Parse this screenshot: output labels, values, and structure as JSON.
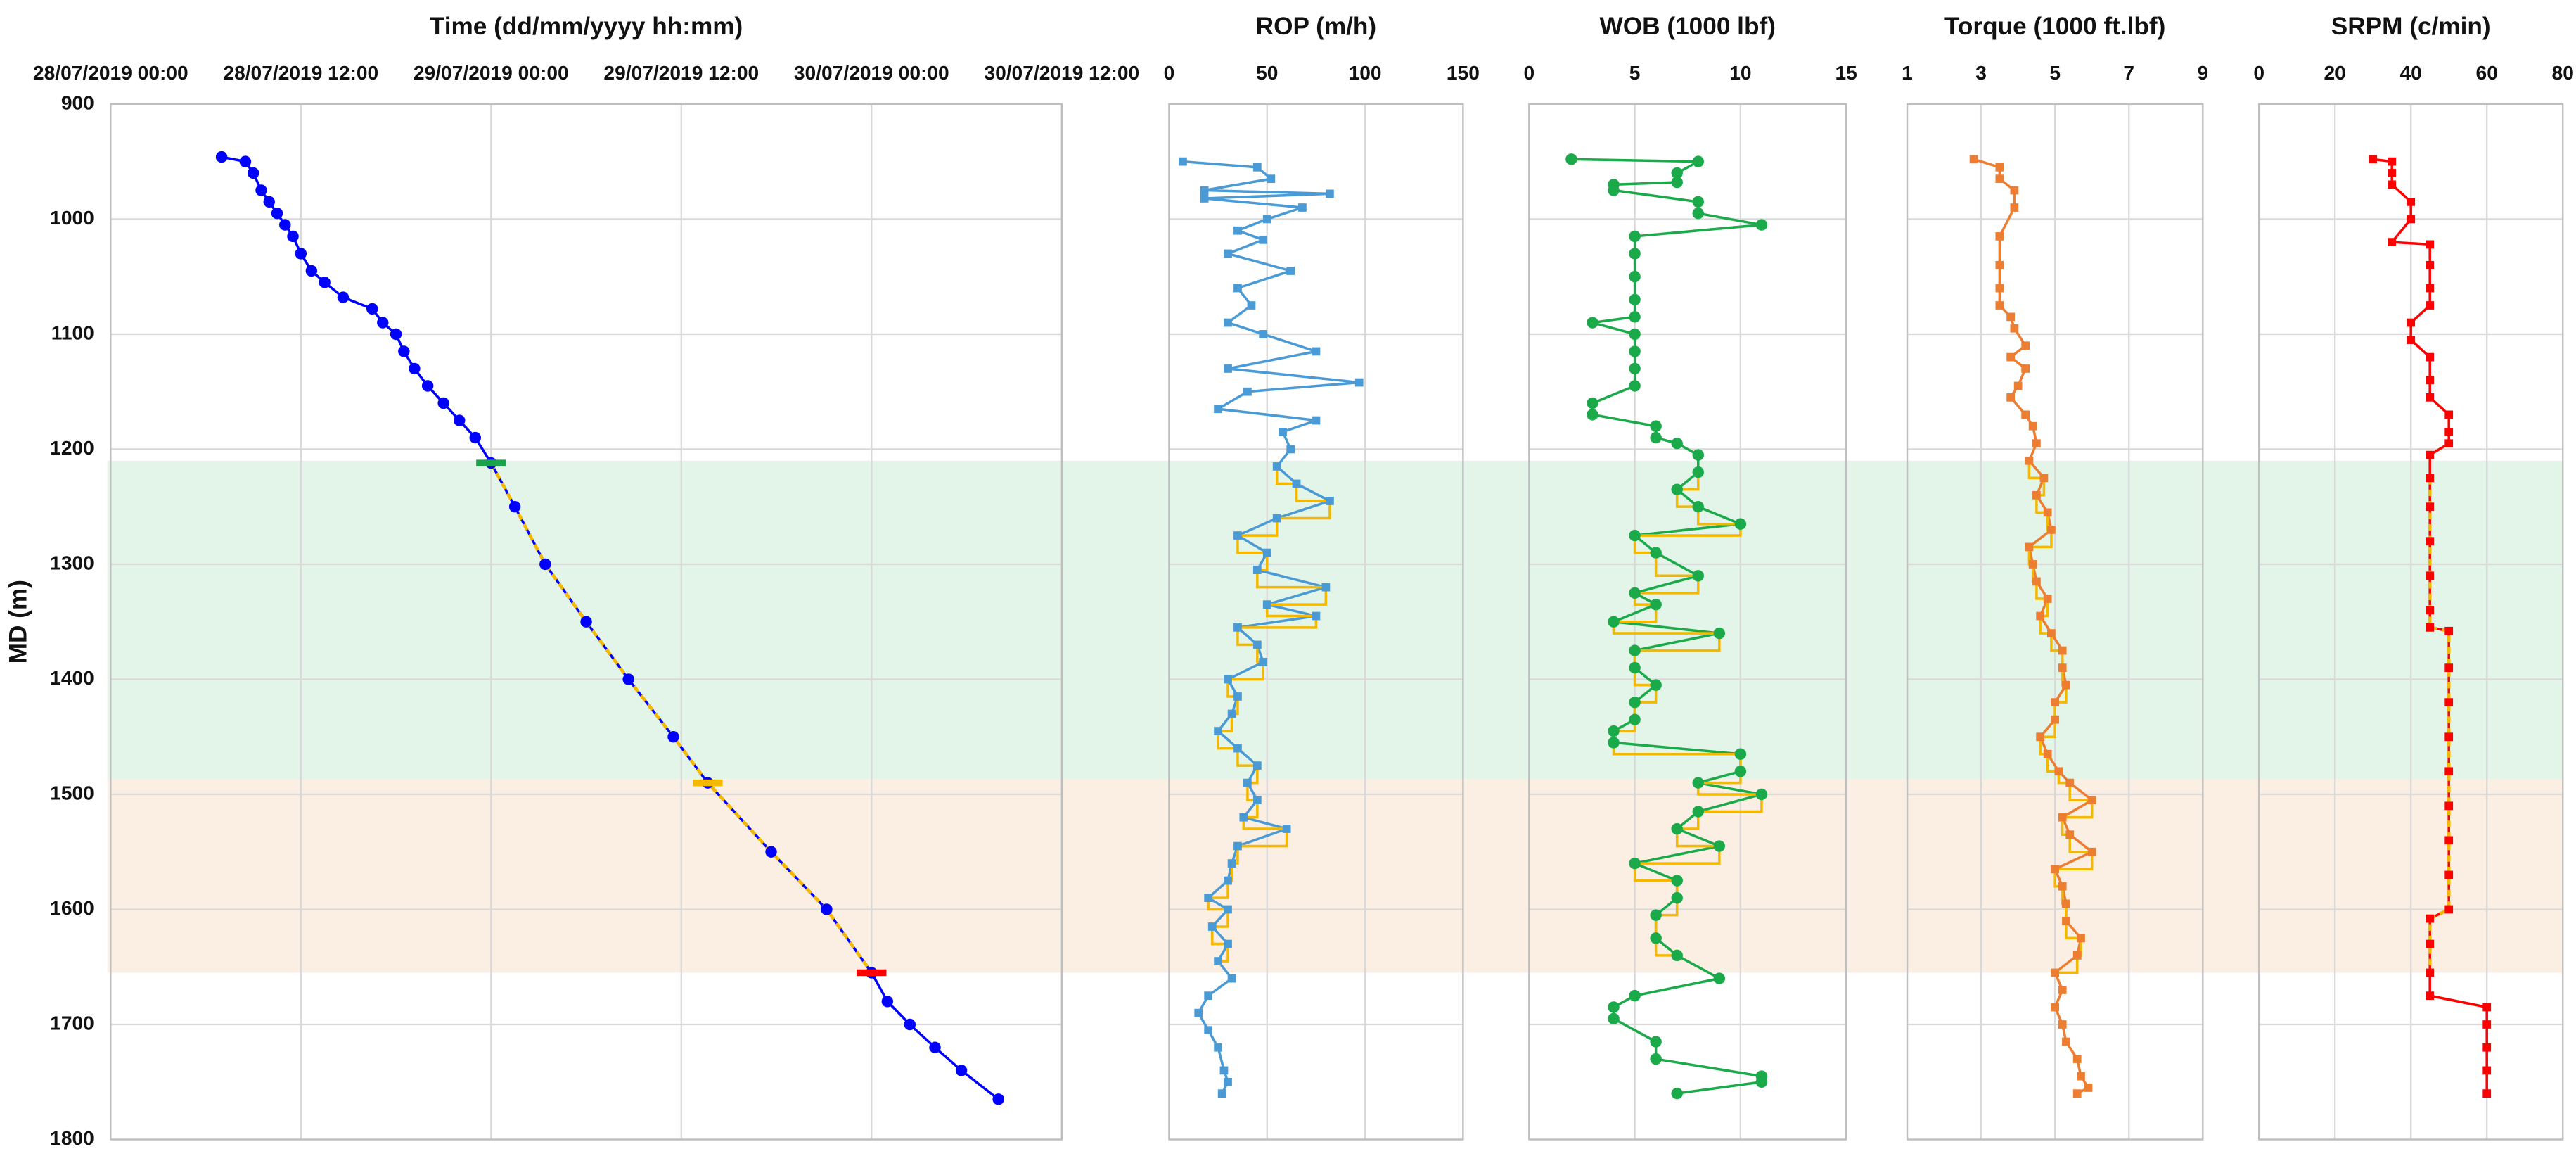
{
  "bands": [
    {
      "from": 1210,
      "to": 1487,
      "color": "#e3f4e8"
    },
    {
      "from": 1487,
      "to": 1655,
      "color": "#fbefe4"
    }
  ],
  "chart_data": [
    {
      "type": "line",
      "title": "Time (dd/mm/yyyy hh:mm)",
      "ylabel": "MD (m)",
      "ylim": [
        900,
        1800
      ],
      "yticks": [
        900,
        1000,
        1100,
        1200,
        1300,
        1400,
        1500,
        1600,
        1700,
        1800
      ],
      "y_inverted": true,
      "grid": true,
      "xlim": [
        "2019-07-28T00:00",
        "2019-07-30T12:00"
      ],
      "xticks": [
        {
          "value": "2019-07-28T00:00",
          "label": "28/07/2019 00:00"
        },
        {
          "value": "2019-07-28T12:00",
          "label": "28/07/2019 12:00"
        },
        {
          "value": "2019-07-29T00:00",
          "label": "29/07/2019 00:00"
        },
        {
          "value": "2019-07-29T12:00",
          "label": "29/07/2019 12:00"
        },
        {
          "value": "2019-07-30T00:00",
          "label": "30/07/2019 00:00"
        },
        {
          "value": "2019-07-30T12:00",
          "label": "30/07/2019 12:00"
        }
      ],
      "series": [
        {
          "color": "#0000ff",
          "marker": "circle",
          "overlay": {
            "color": "#f5b800",
            "from": 1210,
            "to": 1655,
            "style": "dashed"
          },
          "x": [
            "2019-07-28T07:00",
            "2019-07-28T08:30",
            "2019-07-28T09:00",
            "2019-07-28T09:30",
            "2019-07-28T10:00",
            "2019-07-28T10:30",
            "2019-07-28T11:00",
            "2019-07-28T11:30",
            "2019-07-28T12:00",
            "2019-07-28T12:40",
            "2019-07-28T13:30",
            "2019-07-28T14:40",
            "2019-07-28T16:30",
            "2019-07-28T17:10",
            "2019-07-28T18:00",
            "2019-07-28T18:30",
            "2019-07-28T19:10",
            "2019-07-28T20:00",
            "2019-07-28T21:00",
            "2019-07-28T22:00",
            "2019-07-28T23:00",
            "2019-07-29T00:00",
            "2019-07-29T01:30",
            "2019-07-29T03:25",
            "2019-07-29T06:00",
            "2019-07-29T08:40",
            "2019-07-29T11:30",
            "2019-07-29T13:40",
            "2019-07-29T17:40",
            "2019-07-29T21:10",
            "2019-07-30T00:00",
            "2019-07-30T01:00",
            "2019-07-30T02:25",
            "2019-07-30T04:00",
            "2019-07-30T05:40",
            "2019-07-30T08:00"
          ],
          "y": [
            946,
            950,
            960,
            975,
            985,
            995,
            1005,
            1015,
            1030,
            1045,
            1055,
            1068,
            1078,
            1090,
            1100,
            1115,
            1130,
            1145,
            1160,
            1175,
            1190,
            1212,
            1250,
            1300,
            1350,
            1400,
            1450,
            1490,
            1550,
            1600,
            1655,
            1680,
            1700,
            1720,
            1740,
            1765
          ]
        }
      ],
      "markers": [
        {
          "x": "2019-07-29T00:00",
          "y": 1212,
          "color": "#1aa34a"
        },
        {
          "x": "2019-07-29T13:40",
          "y": 1490,
          "color": "#f5b800"
        },
        {
          "x": "2019-07-30T00:00",
          "y": 1655,
          "color": "#ff0000"
        }
      ]
    },
    {
      "type": "line",
      "title": "ROP (m/h)",
      "ylim": [
        900,
        1800
      ],
      "yticks": [
        900,
        1000,
        1100,
        1200,
        1300,
        1400,
        1500,
        1600,
        1700,
        1800
      ],
      "y_inverted": true,
      "grid": true,
      "xlim": [
        0,
        150
      ],
      "xticks": [
        0,
        50,
        100,
        150
      ],
      "series": [
        {
          "color": "#4a9ad6",
          "marker": "square",
          "overlay": {
            "color": "#f5b800",
            "from": 1210,
            "to": 1655,
            "style": "step"
          },
          "x": [
            7,
            45,
            52,
            18,
            82,
            18,
            68,
            50,
            35,
            48,
            30,
            62,
            35,
            42,
            30,
            48,
            75,
            30,
            97,
            40,
            25,
            75,
            58,
            62,
            55,
            65,
            82,
            55,
            35,
            50,
            45,
            80,
            50,
            75,
            35,
            45,
            48,
            30,
            35,
            32,
            25,
            35,
            45,
            40,
            45,
            38,
            60,
            35,
            32,
            30,
            20,
            30,
            22,
            30,
            25,
            32,
            20,
            15,
            20,
            25,
            28,
            30,
            27
          ],
          "y": [
            950,
            955,
            965,
            975,
            978,
            982,
            990,
            1000,
            1010,
            1018,
            1030,
            1045,
            1060,
            1075,
            1090,
            1100,
            1115,
            1130,
            1142,
            1150,
            1165,
            1175,
            1185,
            1200,
            1215,
            1230,
            1245,
            1260,
            1275,
            1290,
            1305,
            1320,
            1335,
            1345,
            1355,
            1370,
            1385,
            1400,
            1415,
            1430,
            1445,
            1460,
            1475,
            1490,
            1505,
            1520,
            1530,
            1545,
            1560,
            1575,
            1590,
            1600,
            1615,
            1630,
            1645,
            1660,
            1675,
            1690,
            1705,
            1720,
            1740,
            1750,
            1760
          ]
        }
      ]
    },
    {
      "type": "line",
      "title": "WOB (1000 lbf)",
      "ylim": [
        900,
        1800
      ],
      "yticks": [
        900,
        1000,
        1100,
        1200,
        1300,
        1400,
        1500,
        1600,
        1700,
        1800
      ],
      "y_inverted": true,
      "grid": true,
      "xlim": [
        0,
        15
      ],
      "xticks": [
        0,
        5,
        10,
        15
      ],
      "series": [
        {
          "color": "#1aaa4a",
          "marker": "circle",
          "overlay": {
            "color": "#f5b800",
            "from": 1210,
            "to": 1655,
            "style": "step"
          },
          "x": [
            2,
            8,
            7,
            7,
            4,
            4,
            8,
            8,
            11,
            5,
            5,
            5,
            5,
            5,
            3,
            5,
            5,
            5,
            5,
            3,
            3,
            6,
            6,
            7,
            8,
            8,
            7,
            8,
            10,
            5,
            6,
            8,
            5,
            6,
            4,
            9,
            5,
            5,
            6,
            5,
            5,
            4,
            4,
            10,
            10,
            8,
            11,
            8,
            7,
            9,
            5,
            7,
            7,
            6,
            6,
            7,
            9,
            5,
            4,
            4,
            6,
            6,
            11,
            11,
            7
          ],
          "y": [
            948,
            950,
            960,
            968,
            970,
            975,
            985,
            995,
            1005,
            1015,
            1030,
            1050,
            1070,
            1085,
            1090,
            1100,
            1115,
            1130,
            1145,
            1160,
            1170,
            1180,
            1190,
            1195,
            1205,
            1220,
            1235,
            1250,
            1265,
            1275,
            1290,
            1310,
            1325,
            1335,
            1350,
            1360,
            1375,
            1390,
            1405,
            1420,
            1435,
            1445,
            1455,
            1465,
            1480,
            1490,
            1500,
            1515,
            1530,
            1545,
            1560,
            1575,
            1590,
            1605,
            1625,
            1640,
            1660,
            1675,
            1685,
            1695,
            1715,
            1730,
            1745,
            1750,
            1760
          ]
        }
      ]
    },
    {
      "type": "line",
      "title": "Torque (1000 ft.lbf)",
      "ylim": [
        900,
        1800
      ],
      "yticks": [
        900,
        1000,
        1100,
        1200,
        1300,
        1400,
        1500,
        1600,
        1700,
        1800
      ],
      "y_inverted": true,
      "grid": true,
      "xlim": [
        1,
        9
      ],
      "xticks": [
        1,
        3,
        5,
        7,
        9
      ],
      "series": [
        {
          "color": "#ed7d31",
          "marker": "square",
          "overlay": {
            "color": "#f5b800",
            "from": 1210,
            "to": 1655,
            "style": "step"
          },
          "x": [
            2.8,
            3.5,
            3.5,
            3.9,
            3.9,
            3.5,
            3.5,
            3.5,
            3.5,
            3.8,
            3.9,
            4.2,
            3.8,
            4.2,
            4.0,
            3.8,
            4.2,
            4.4,
            4.5,
            4.3,
            4.7,
            4.5,
            4.8,
            4.9,
            4.3,
            4.4,
            4.5,
            4.8,
            4.6,
            4.9,
            5.2,
            5.2,
            5.3,
            5.0,
            5.0,
            4.6,
            4.8,
            5.1,
            5.4,
            6.0,
            5.2,
            5.4,
            6.0,
            5.0,
            5.2,
            5.3,
            5.3,
            5.7,
            5.6,
            5.0,
            5.2,
            5.0,
            5.2,
            5.3,
            5.6,
            5.7,
            5.9,
            5.6
          ],
          "y": [
            948,
            955,
            965,
            975,
            990,
            1015,
            1040,
            1060,
            1075,
            1085,
            1095,
            1110,
            1120,
            1130,
            1145,
            1155,
            1170,
            1180,
            1195,
            1210,
            1225,
            1240,
            1255,
            1270,
            1285,
            1300,
            1315,
            1330,
            1345,
            1360,
            1375,
            1390,
            1405,
            1420,
            1435,
            1450,
            1465,
            1480,
            1490,
            1505,
            1520,
            1535,
            1550,
            1565,
            1580,
            1595,
            1610,
            1625,
            1640,
            1655,
            1670,
            1685,
            1700,
            1715,
            1730,
            1745,
            1755,
            1760
          ]
        }
      ]
    },
    {
      "type": "line",
      "title": "SRPM (c/min)",
      "ylim": [
        900,
        1800
      ],
      "yticks": [
        900,
        1000,
        1100,
        1200,
        1300,
        1400,
        1500,
        1600,
        1700,
        1800
      ],
      "y_inverted": true,
      "grid": true,
      "xlim": [
        0,
        80
      ],
      "xticks": [
        0,
        20,
        40,
        60,
        80
      ],
      "series": [
        {
          "color": "#ff0000",
          "marker": "square",
          "overlay": {
            "color": "#f5b800",
            "from": 1210,
            "to": 1655,
            "style": "dashed"
          },
          "x": [
            30,
            35,
            35,
            35,
            40,
            40,
            35,
            45,
            45,
            45,
            45,
            40,
            40,
            45,
            45,
            45,
            50,
            50,
            50,
            45,
            45,
            45,
            45,
            45,
            45,
            45,
            50,
            50,
            50,
            50,
            50,
            50,
            50,
            50,
            50,
            45,
            45,
            45,
            45,
            60,
            60,
            60,
            60,
            60
          ],
          "y": [
            948,
            950,
            960,
            970,
            985,
            1000,
            1020,
            1022,
            1040,
            1060,
            1075,
            1090,
            1105,
            1120,
            1140,
            1155,
            1170,
            1185,
            1195,
            1205,
            1225,
            1250,
            1280,
            1310,
            1340,
            1355,
            1358,
            1390,
            1420,
            1450,
            1480,
            1510,
            1540,
            1570,
            1600,
            1608,
            1630,
            1655,
            1675,
            1685,
            1700,
            1720,
            1740,
            1760
          ]
        }
      ]
    }
  ]
}
